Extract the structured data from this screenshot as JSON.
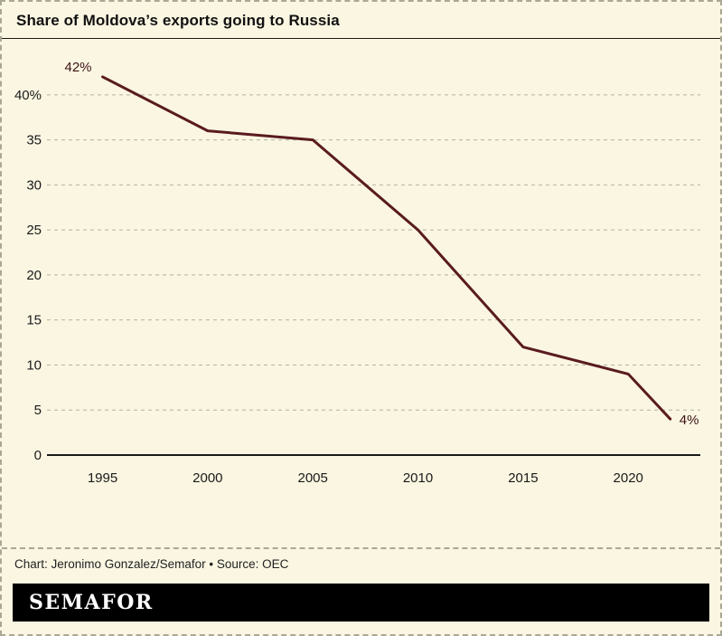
{
  "header": {
    "title": "Share of Moldova’s exports going to Russia"
  },
  "chart_data": {
    "type": "line",
    "title": "Share of Moldova’s exports going to Russia",
    "xlabel": "",
    "ylabel": "",
    "series": [
      {
        "name": "Share of exports to Russia (%)",
        "x": [
          1995,
          2000,
          2005,
          2010,
          2015,
          2020,
          2022
        ],
        "values": [
          42,
          36,
          35,
          25,
          12,
          9,
          4
        ]
      }
    ],
    "x_ticks": [
      1995,
      2000,
      2005,
      2010,
      2015,
      2020
    ],
    "y_ticks": [
      0,
      5,
      10,
      15,
      20,
      25,
      30,
      35,
      40
    ],
    "y_tick_labels": [
      "0",
      "5",
      "10",
      "15",
      "20",
      "25",
      "30",
      "35",
      "40%"
    ],
    "xlim": [
      1992.7,
      2023.3
    ],
    "ylim": [
      0,
      44
    ],
    "grid": "horizontal-dashed",
    "legend": "none",
    "annotations": [
      {
        "text": "42%",
        "x": 1995,
        "y": 42,
        "position": "above-left"
      },
      {
        "text": "4%",
        "x": 2022,
        "y": 4,
        "position": "right"
      }
    ]
  },
  "colors": {
    "background": "#faf6e2",
    "line": "#5a1b1e",
    "grid": "#b4b1a2",
    "axis": "#1a1a1a",
    "annotation": "#3f1417",
    "border_dashed": "#a9a795",
    "logo_bg": "#000000",
    "logo_text": "#ffffff"
  },
  "footer": {
    "credit": "Chart: Jeronimo Gonzalez/Semafor • Source: OEC",
    "logo": "SEMAFOR"
  }
}
